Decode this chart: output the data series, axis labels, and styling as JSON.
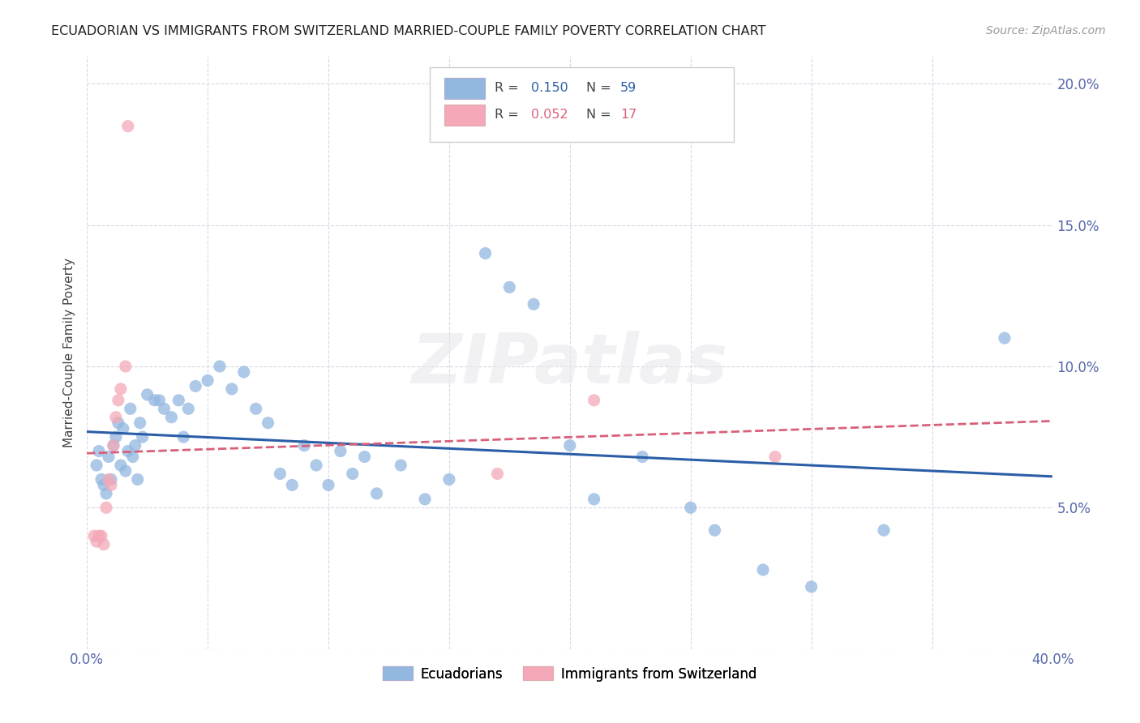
{
  "title": "ECUADORIAN VS IMMIGRANTS FROM SWITZERLAND MARRIED-COUPLE FAMILY POVERTY CORRELATION CHART",
  "source": "Source: ZipAtlas.com",
  "ylabel": "Married-Couple Family Poverty",
  "watermark": "ZIPatlas",
  "xmin": 0.0,
  "xmax": 0.4,
  "ymin": 0.0,
  "ymax": 0.21,
  "xticks": [
    0.0,
    0.05,
    0.1,
    0.15,
    0.2,
    0.25,
    0.3,
    0.35,
    0.4
  ],
  "yticks": [
    0.0,
    0.05,
    0.1,
    0.15,
    0.2
  ],
  "blue_R": "0.150",
  "blue_N": "59",
  "pink_R": "0.052",
  "pink_N": "17",
  "blue_color": "#92b8e0",
  "pink_color": "#f4a8b8",
  "blue_line_color": "#2b5ea7",
  "pink_line_color": "#d9607a",
  "tick_color": "#5566aa",
  "legend_label_blue": "Ecuadorians",
  "legend_label_pink": "Immigrants from Switzerland",
  "blue_scatter_x": [
    0.004,
    0.005,
    0.006,
    0.007,
    0.008,
    0.009,
    0.01,
    0.011,
    0.012,
    0.013,
    0.014,
    0.015,
    0.016,
    0.017,
    0.018,
    0.019,
    0.02,
    0.021,
    0.022,
    0.023,
    0.025,
    0.028,
    0.03,
    0.032,
    0.035,
    0.038,
    0.04,
    0.042,
    0.045,
    0.05,
    0.055,
    0.06,
    0.065,
    0.07,
    0.075,
    0.08,
    0.085,
    0.09,
    0.095,
    0.1,
    0.105,
    0.11,
    0.115,
    0.12,
    0.13,
    0.14,
    0.15,
    0.165,
    0.175,
    0.185,
    0.2,
    0.21,
    0.23,
    0.25,
    0.26,
    0.28,
    0.3,
    0.33,
    0.38
  ],
  "blue_scatter_y": [
    0.065,
    0.07,
    0.06,
    0.058,
    0.055,
    0.068,
    0.06,
    0.072,
    0.075,
    0.08,
    0.065,
    0.078,
    0.063,
    0.07,
    0.085,
    0.068,
    0.072,
    0.06,
    0.08,
    0.075,
    0.09,
    0.088,
    0.088,
    0.085,
    0.082,
    0.088,
    0.075,
    0.085,
    0.093,
    0.095,
    0.1,
    0.092,
    0.098,
    0.085,
    0.08,
    0.062,
    0.058,
    0.072,
    0.065,
    0.058,
    0.07,
    0.062,
    0.068,
    0.055,
    0.065,
    0.053,
    0.06,
    0.14,
    0.128,
    0.122,
    0.072,
    0.053,
    0.068,
    0.05,
    0.042,
    0.028,
    0.022,
    0.042,
    0.11
  ],
  "pink_scatter_x": [
    0.003,
    0.004,
    0.005,
    0.006,
    0.007,
    0.008,
    0.009,
    0.01,
    0.011,
    0.012,
    0.013,
    0.014,
    0.016,
    0.017,
    0.17,
    0.21,
    0.285
  ],
  "pink_scatter_y": [
    0.04,
    0.038,
    0.04,
    0.04,
    0.037,
    0.05,
    0.06,
    0.058,
    0.072,
    0.082,
    0.088,
    0.092,
    0.1,
    0.185,
    0.062,
    0.088,
    0.068
  ],
  "background_color": "#ffffff",
  "grid_color": "#d8d8e8"
}
